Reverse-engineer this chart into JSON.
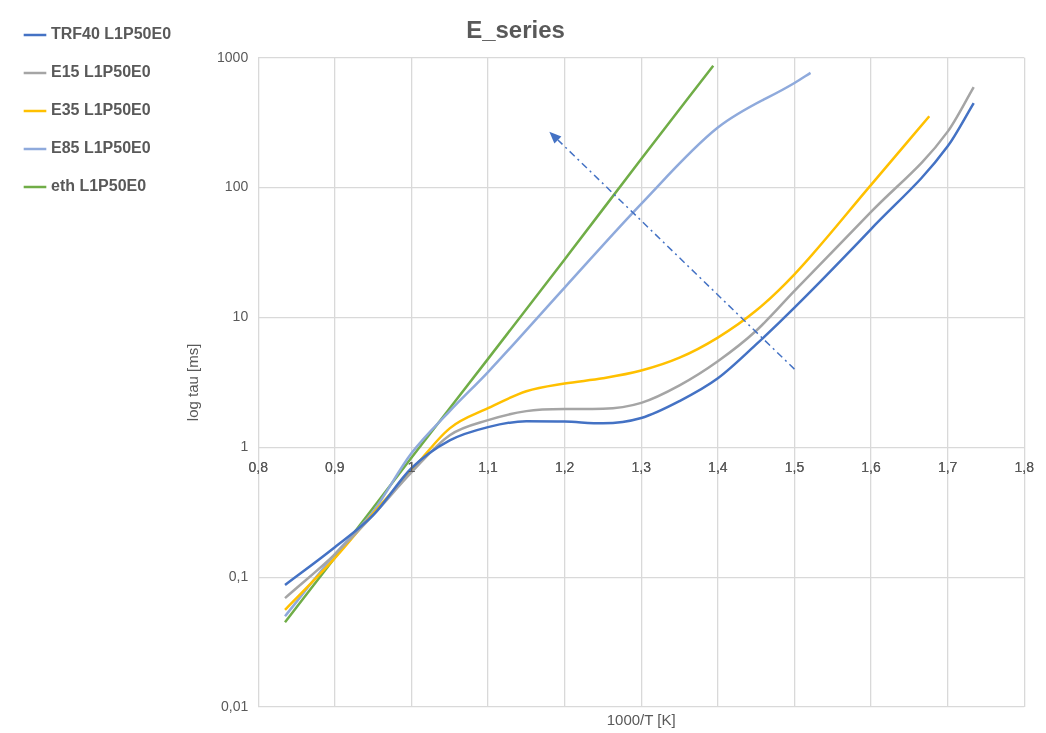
{
  "chart_data": {
    "type": "line",
    "title": "E_series",
    "xlabel": "1000/T [K]",
    "ylabel": "log tau [ms]",
    "log": "y",
    "grid": true,
    "legend": "left",
    "marker": "none",
    "line_style": "solid",
    "xlim": [
      0.8,
      1.8
    ],
    "xticks": [
      {
        "value": 0.8,
        "label": "0,8"
      },
      {
        "value": 0.9,
        "label": "0,9"
      },
      1,
      {
        "value": 1.1,
        "label": "1,1"
      },
      {
        "value": 1.2,
        "label": "1,2"
      },
      {
        "value": 1.3,
        "label": "1,3"
      },
      {
        "value": 1.4,
        "label": "1,4"
      },
      {
        "value": 1.5,
        "label": "1,5"
      },
      {
        "value": 1.6,
        "label": "1,6"
      },
      {
        "value": 1.7,
        "label": "1,7"
      },
      {
        "value": 1.8,
        "label": "1,8"
      }
    ],
    "ylim": [
      0.01,
      1000
    ],
    "yticks": [
      {
        "value": 0.01,
        "label": "0,01"
      },
      {
        "value": 0.1,
        "label": "0,1"
      },
      1,
      10,
      100,
      1000
    ],
    "series": [
      {
        "name": "TRF40 L1P50E0",
        "color": "#4472c4",
        "x": [
          0.835,
          0.9,
          0.95,
          1.0,
          1.05,
          1.1,
          1.15,
          1.2,
          1.25,
          1.3,
          1.35,
          1.4,
          1.45,
          1.5,
          1.6,
          1.7,
          1.734
        ],
        "values": [
          0.087,
          0.17,
          0.3,
          0.69,
          1.13,
          1.43,
          1.59,
          1.58,
          1.53,
          1.68,
          2.27,
          3.4,
          6.2,
          11.9,
          48,
          208,
          448
        ]
      },
      {
        "name": "E15 L1P50E0",
        "color": "#a5a5a5",
        "x": [
          0.835,
          0.9,
          0.95,
          1.0,
          1.05,
          1.1,
          1.15,
          1.2,
          1.25,
          1.3,
          1.35,
          1.4,
          1.45,
          1.5,
          1.6,
          1.7,
          1.734
        ],
        "values": [
          0.069,
          0.15,
          0.3,
          0.64,
          1.24,
          1.62,
          1.9,
          1.97,
          1.98,
          2.2,
          3.0,
          4.6,
          7.9,
          16,
          65,
          270,
          595
        ]
      },
      {
        "name": "E35 L1P50E0",
        "color": "#ffc000",
        "x": [
          0.835,
          0.9,
          0.95,
          1.0,
          1.05,
          1.1,
          1.15,
          1.2,
          1.25,
          1.3,
          1.35,
          1.4,
          1.45,
          1.5,
          1.6,
          1.676
        ],
        "values": [
          0.056,
          0.14,
          0.31,
          0.66,
          1.4,
          2.0,
          2.7,
          3.1,
          3.4,
          3.9,
          4.9,
          7.0,
          11.3,
          21.5,
          105,
          355
        ]
      },
      {
        "name": "E85 L1P50E0",
        "color": "#8faadc",
        "x": [
          0.835,
          0.9,
          0.95,
          1.0,
          1.05,
          1.1,
          1.2,
          1.3,
          1.4,
          1.5,
          1.521
        ],
        "values": [
          0.05,
          0.15,
          0.32,
          0.9,
          1.9,
          3.8,
          17,
          75,
          290,
          640,
          765
        ]
      },
      {
        "name": "eth L1P50E0",
        "color": "#70ad47",
        "x": [
          0.835,
          0.9,
          1.0,
          1.1,
          1.2,
          1.3,
          1.394
        ],
        "values": [
          0.045,
          0.141,
          0.83,
          4.8,
          28,
          166,
          870
        ]
      }
    ]
  }
}
